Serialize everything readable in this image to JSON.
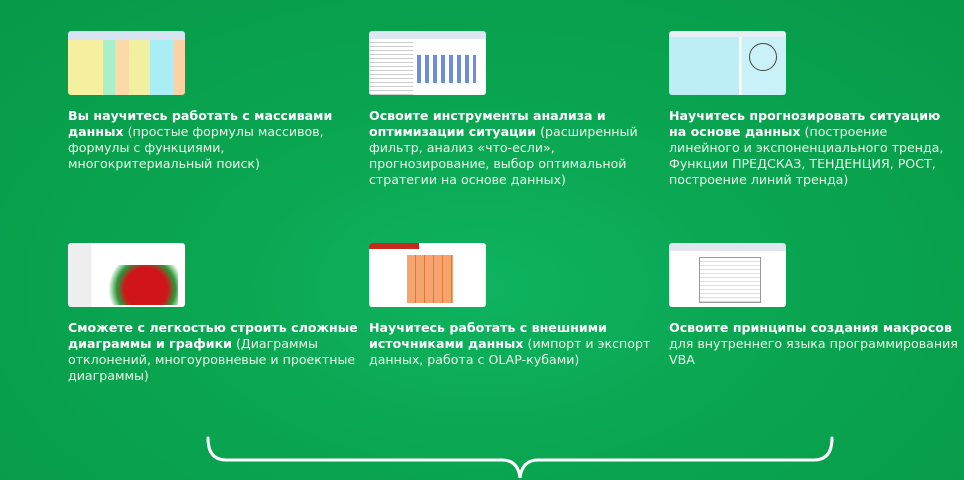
{
  "cards": [
    {
      "bold": "Вы научитесь работать с массивами данных",
      "rest": " (простые формулы массивов, формулы с функциями, многокритериальный поиск)",
      "thumb": "spreadsheet-arrays"
    },
    {
      "bold": "Освоите инструменты анализа и оптимизации ситуации",
      "rest": " (расширенный фильтр, анализ «что-если», прогнозирование, выбор оптимальной стратегии на основе данных)",
      "thumb": "analysis-chart"
    },
    {
      "bold": "Научитесь прогнозировать ситуацию на основе данных",
      "rest": " (построение линейного и экспоненциального тренда, Функции ПРЕДСКАЗ, ТЕНДЕНЦИЯ, РОСТ, построение линий тренда)",
      "thumb": "forecast-chart"
    },
    {
      "bold": "Сможете с легкостью строить сложные диаграммы и графики",
      "rest": " (Диаграммы отклонений, многоуровневые и проектные диаграммы)",
      "thumb": "complex-chart"
    },
    {
      "bold": "Научитесь работать с внешними источниками данных",
      "rest": " (импорт и экспорт данных, работа с OLAP-кубами)",
      "thumb": "olap-cube"
    },
    {
      "bold": "Освоите принципы создания макросов",
      "rest": " для внутреннего языка программирования VBA",
      "thumb": "vba-editor"
    }
  ],
  "colors": {
    "background": "#0aa551",
    "text": "#ffffff"
  }
}
